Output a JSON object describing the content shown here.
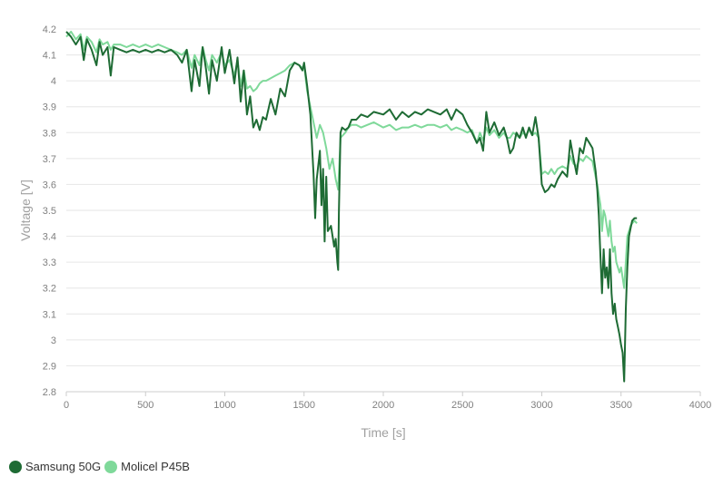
{
  "chart_data": {
    "type": "line",
    "xlabel": "Time [s]",
    "ylabel": "Voltage [V]",
    "xlim": [
      0,
      4000
    ],
    "ylim": [
      2.8,
      4.2
    ],
    "x_ticks": [
      "0",
      "500",
      "1000",
      "1500",
      "2000",
      "2500",
      "3000",
      "3500",
      "4000"
    ],
    "y_ticks": [
      "2.8",
      "2.9",
      "3",
      "3.1",
      "3.2",
      "3.3",
      "3.4",
      "3.5",
      "3.6",
      "3.7",
      "3.8",
      "3.9",
      "4",
      "4.1",
      "4.2"
    ],
    "grid": true,
    "legend_position": "bottom-left",
    "series": [
      {
        "name": "Samsung 50G",
        "color": "#1e6b34",
        "points": [
          [
            0,
            4.19
          ],
          [
            30,
            4.17
          ],
          [
            60,
            4.14
          ],
          [
            90,
            4.17
          ],
          [
            110,
            4.08
          ],
          [
            130,
            4.16
          ],
          [
            160,
            4.12
          ],
          [
            190,
            4.06
          ],
          [
            210,
            4.15
          ],
          [
            230,
            4.1
          ],
          [
            260,
            4.13
          ],
          [
            280,
            4.02
          ],
          [
            300,
            4.13
          ],
          [
            340,
            4.12
          ],
          [
            380,
            4.11
          ],
          [
            420,
            4.12
          ],
          [
            460,
            4.11
          ],
          [
            500,
            4.12
          ],
          [
            540,
            4.11
          ],
          [
            580,
            4.12
          ],
          [
            620,
            4.11
          ],
          [
            660,
            4.12
          ],
          [
            700,
            4.1
          ],
          [
            730,
            4.07
          ],
          [
            760,
            4.12
          ],
          [
            790,
            3.96
          ],
          [
            810,
            4.08
          ],
          [
            840,
            3.98
          ],
          [
            860,
            4.13
          ],
          [
            880,
            4.05
          ],
          [
            900,
            3.95
          ],
          [
            920,
            4.08
          ],
          [
            950,
            4.0
          ],
          [
            980,
            4.13
          ],
          [
            1000,
            4.03
          ],
          [
            1030,
            4.12
          ],
          [
            1060,
            3.99
          ],
          [
            1080,
            4.09
          ],
          [
            1100,
            3.92
          ],
          [
            1120,
            4.04
          ],
          [
            1140,
            3.87
          ],
          [
            1160,
            3.94
          ],
          [
            1180,
            3.82
          ],
          [
            1200,
            3.85
          ],
          [
            1220,
            3.81
          ],
          [
            1240,
            3.86
          ],
          [
            1260,
            3.85
          ],
          [
            1290,
            3.93
          ],
          [
            1320,
            3.87
          ],
          [
            1350,
            3.97
          ],
          [
            1380,
            3.94
          ],
          [
            1410,
            4.04
          ],
          [
            1440,
            4.07
          ],
          [
            1470,
            4.06
          ],
          [
            1490,
            4.04
          ],
          [
            1500,
            4.07
          ],
          [
            1520,
            3.98
          ],
          [
            1540,
            3.87
          ],
          [
            1560,
            3.64
          ],
          [
            1570,
            3.47
          ],
          [
            1580,
            3.62
          ],
          [
            1600,
            3.73
          ],
          [
            1610,
            3.52
          ],
          [
            1620,
            3.66
          ],
          [
            1630,
            3.38
          ],
          [
            1640,
            3.63
          ],
          [
            1650,
            3.42
          ],
          [
            1670,
            3.44
          ],
          [
            1690,
            3.36
          ],
          [
            1700,
            3.39
          ],
          [
            1710,
            3.3
          ],
          [
            1715,
            3.27
          ],
          [
            1720,
            3.49
          ],
          [
            1730,
            3.8
          ],
          [
            1740,
            3.82
          ],
          [
            1760,
            3.81
          ],
          [
            1780,
            3.82
          ],
          [
            1800,
            3.85
          ],
          [
            1830,
            3.85
          ],
          [
            1860,
            3.87
          ],
          [
            1900,
            3.86
          ],
          [
            1940,
            3.88
          ],
          [
            2000,
            3.87
          ],
          [
            2040,
            3.89
          ],
          [
            2080,
            3.85
          ],
          [
            2120,
            3.88
          ],
          [
            2160,
            3.86
          ],
          [
            2200,
            3.88
          ],
          [
            2240,
            3.87
          ],
          [
            2280,
            3.89
          ],
          [
            2320,
            3.88
          ],
          [
            2360,
            3.87
          ],
          [
            2400,
            3.89
          ],
          [
            2430,
            3.85
          ],
          [
            2460,
            3.89
          ],
          [
            2500,
            3.87
          ],
          [
            2530,
            3.83
          ],
          [
            2560,
            3.8
          ],
          [
            2590,
            3.76
          ],
          [
            2610,
            3.78
          ],
          [
            2630,
            3.73
          ],
          [
            2650,
            3.88
          ],
          [
            2670,
            3.8
          ],
          [
            2700,
            3.84
          ],
          [
            2730,
            3.79
          ],
          [
            2760,
            3.82
          ],
          [
            2780,
            3.78
          ],
          [
            2800,
            3.72
          ],
          [
            2820,
            3.74
          ],
          [
            2840,
            3.8
          ],
          [
            2860,
            3.78
          ],
          [
            2880,
            3.82
          ],
          [
            2900,
            3.78
          ],
          [
            2920,
            3.82
          ],
          [
            2940,
            3.79
          ],
          [
            2960,
            3.86
          ],
          [
            2980,
            3.78
          ],
          [
            3000,
            3.6
          ],
          [
            3020,
            3.57
          ],
          [
            3040,
            3.58
          ],
          [
            3060,
            3.6
          ],
          [
            3080,
            3.59
          ],
          [
            3100,
            3.62
          ],
          [
            3130,
            3.65
          ],
          [
            3160,
            3.63
          ],
          [
            3180,
            3.77
          ],
          [
            3200,
            3.7
          ],
          [
            3220,
            3.64
          ],
          [
            3240,
            3.74
          ],
          [
            3260,
            3.72
          ],
          [
            3280,
            3.78
          ],
          [
            3300,
            3.76
          ],
          [
            3320,
            3.74
          ],
          [
            3340,
            3.65
          ],
          [
            3350,
            3.58
          ],
          [
            3360,
            3.48
          ],
          [
            3370,
            3.32
          ],
          [
            3380,
            3.18
          ],
          [
            3390,
            3.35
          ],
          [
            3400,
            3.24
          ],
          [
            3410,
            3.28
          ],
          [
            3420,
            3.2
          ],
          [
            3430,
            3.35
          ],
          [
            3440,
            3.18
          ],
          [
            3450,
            3.1
          ],
          [
            3460,
            3.14
          ],
          [
            3470,
            3.08
          ],
          [
            3480,
            3.05
          ],
          [
            3490,
            3.02
          ],
          [
            3500,
            2.98
          ],
          [
            3510,
            2.95
          ],
          [
            3520,
            2.84
          ],
          [
            3530,
            3.12
          ],
          [
            3540,
            3.28
          ],
          [
            3550,
            3.4
          ],
          [
            3560,
            3.43
          ],
          [
            3570,
            3.46
          ],
          [
            3585,
            3.47
          ],
          [
            3600,
            3.47
          ]
        ]
      },
      {
        "name": "Molicel P45B",
        "color": "#7fd99a",
        "points": [
          [
            0,
            4.17
          ],
          [
            30,
            4.19
          ],
          [
            60,
            4.16
          ],
          [
            90,
            4.18
          ],
          [
            110,
            4.12
          ],
          [
            130,
            4.17
          ],
          [
            160,
            4.15
          ],
          [
            190,
            4.11
          ],
          [
            210,
            4.16
          ],
          [
            230,
            4.14
          ],
          [
            260,
            4.15
          ],
          [
            280,
            4.12
          ],
          [
            300,
            4.14
          ],
          [
            340,
            4.14
          ],
          [
            380,
            4.13
          ],
          [
            420,
            4.14
          ],
          [
            460,
            4.13
          ],
          [
            500,
            4.14
          ],
          [
            540,
            4.13
          ],
          [
            580,
            4.14
          ],
          [
            620,
            4.13
          ],
          [
            660,
            4.12
          ],
          [
            700,
            4.11
          ],
          [
            730,
            4.1
          ],
          [
            760,
            4.12
          ],
          [
            790,
            4.05
          ],
          [
            810,
            4.1
          ],
          [
            840,
            4.06
          ],
          [
            860,
            4.13
          ],
          [
            880,
            4.08
          ],
          [
            900,
            4.04
          ],
          [
            920,
            4.1
          ],
          [
            950,
            4.07
          ],
          [
            980,
            4.11
          ],
          [
            1000,
            4.06
          ],
          [
            1030,
            4.08
          ],
          [
            1060,
            4.02
          ],
          [
            1080,
            4.08
          ],
          [
            1100,
            3.98
          ],
          [
            1120,
            4.04
          ],
          [
            1140,
            3.97
          ],
          [
            1160,
            3.98
          ],
          [
            1180,
            3.96
          ],
          [
            1200,
            3.97
          ],
          [
            1220,
            3.99
          ],
          [
            1240,
            4.0
          ],
          [
            1260,
            4.0
          ],
          [
            1290,
            4.01
          ],
          [
            1320,
            4.02
          ],
          [
            1350,
            4.03
          ],
          [
            1380,
            4.04
          ],
          [
            1410,
            4.06
          ],
          [
            1440,
            4.07
          ],
          [
            1470,
            4.06
          ],
          [
            1490,
            4.05
          ],
          [
            1500,
            4.06
          ],
          [
            1520,
            3.96
          ],
          [
            1540,
            3.9
          ],
          [
            1560,
            3.84
          ],
          [
            1580,
            3.78
          ],
          [
            1600,
            3.83
          ],
          [
            1620,
            3.8
          ],
          [
            1640,
            3.74
          ],
          [
            1660,
            3.66
          ],
          [
            1680,
            3.7
          ],
          [
            1700,
            3.62
          ],
          [
            1715,
            3.58
          ],
          [
            1730,
            3.78
          ],
          [
            1760,
            3.8
          ],
          [
            1780,
            3.82
          ],
          [
            1800,
            3.83
          ],
          [
            1830,
            3.83
          ],
          [
            1860,
            3.82
          ],
          [
            1900,
            3.83
          ],
          [
            1940,
            3.84
          ],
          [
            2000,
            3.82
          ],
          [
            2040,
            3.83
          ],
          [
            2080,
            3.81
          ],
          [
            2120,
            3.82
          ],
          [
            2160,
            3.82
          ],
          [
            2200,
            3.83
          ],
          [
            2240,
            3.82
          ],
          [
            2280,
            3.83
          ],
          [
            2320,
            3.83
          ],
          [
            2360,
            3.82
          ],
          [
            2400,
            3.83
          ],
          [
            2430,
            3.81
          ],
          [
            2460,
            3.82
          ],
          [
            2500,
            3.81
          ],
          [
            2530,
            3.8
          ],
          [
            2560,
            3.81
          ],
          [
            2590,
            3.76
          ],
          [
            2610,
            3.8
          ],
          [
            2630,
            3.77
          ],
          [
            2650,
            3.82
          ],
          [
            2670,
            3.79
          ],
          [
            2700,
            3.81
          ],
          [
            2730,
            3.78
          ],
          [
            2760,
            3.8
          ],
          [
            2780,
            3.78
          ],
          [
            2800,
            3.78
          ],
          [
            2820,
            3.8
          ],
          [
            2840,
            3.79
          ],
          [
            2860,
            3.78
          ],
          [
            2880,
            3.8
          ],
          [
            2900,
            3.79
          ],
          [
            2920,
            3.81
          ],
          [
            2940,
            3.79
          ],
          [
            2960,
            3.8
          ],
          [
            2980,
            3.78
          ],
          [
            3000,
            3.64
          ],
          [
            3020,
            3.65
          ],
          [
            3040,
            3.64
          ],
          [
            3060,
            3.66
          ],
          [
            3080,
            3.64
          ],
          [
            3100,
            3.66
          ],
          [
            3130,
            3.67
          ],
          [
            3160,
            3.66
          ],
          [
            3180,
            3.71
          ],
          [
            3200,
            3.68
          ],
          [
            3220,
            3.67
          ],
          [
            3240,
            3.7
          ],
          [
            3260,
            3.69
          ],
          [
            3280,
            3.71
          ],
          [
            3300,
            3.7
          ],
          [
            3320,
            3.69
          ],
          [
            3340,
            3.63
          ],
          [
            3350,
            3.6
          ],
          [
            3360,
            3.56
          ],
          [
            3370,
            3.52
          ],
          [
            3380,
            3.42
          ],
          [
            3390,
            3.5
          ],
          [
            3400,
            3.48
          ],
          [
            3410,
            3.44
          ],
          [
            3420,
            3.4
          ],
          [
            3430,
            3.46
          ],
          [
            3440,
            3.38
          ],
          [
            3450,
            3.34
          ],
          [
            3460,
            3.36
          ],
          [
            3470,
            3.3
          ],
          [
            3480,
            3.28
          ],
          [
            3490,
            3.26
          ],
          [
            3500,
            3.28
          ],
          [
            3510,
            3.24
          ],
          [
            3520,
            3.2
          ],
          [
            3530,
            3.3
          ],
          [
            3540,
            3.4
          ],
          [
            3550,
            3.42
          ],
          [
            3560,
            3.44
          ],
          [
            3570,
            3.45
          ],
          [
            3585,
            3.46
          ],
          [
            3600,
            3.45
          ]
        ]
      }
    ]
  }
}
